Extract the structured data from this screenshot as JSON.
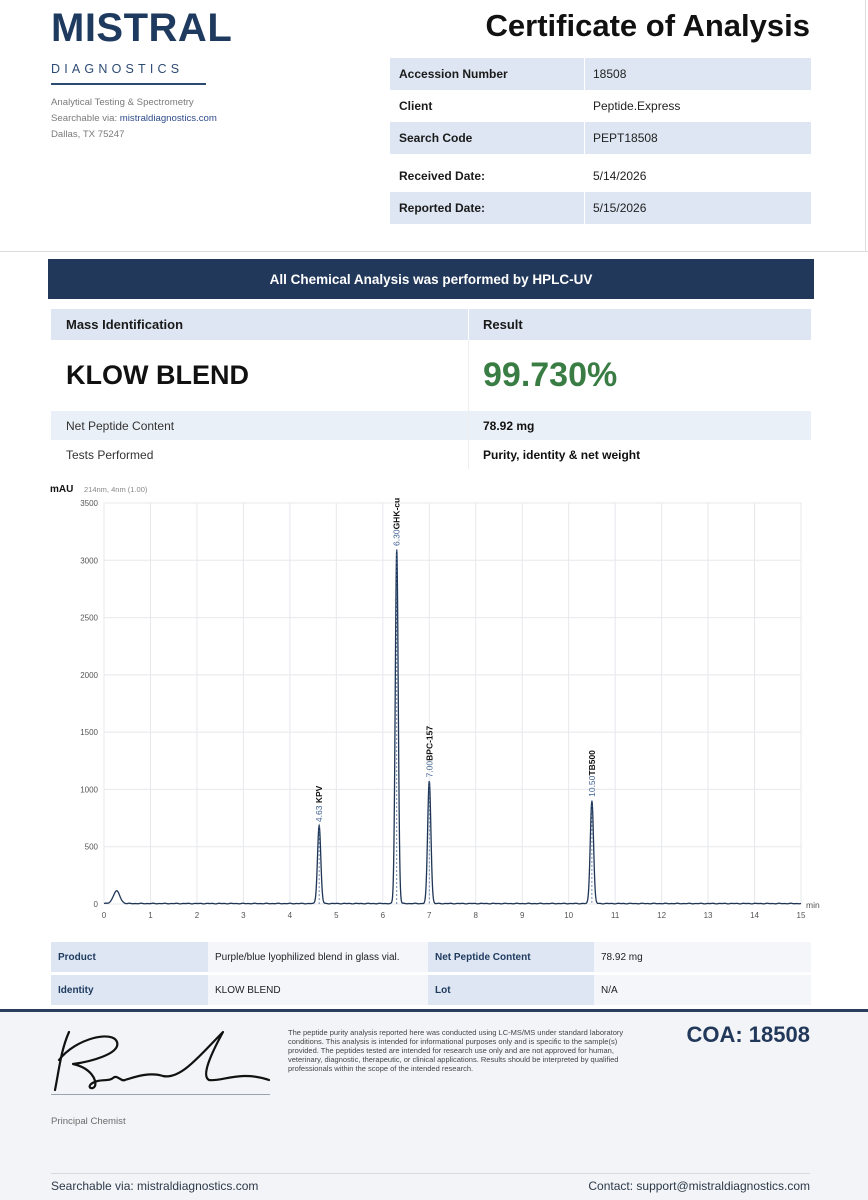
{
  "brand": {
    "name": "MISTRAL",
    "subtitle": "DIAGNOSTICS",
    "tagline": "Analytical Testing & Spectrometry",
    "search_prefix": "Searchable via: ",
    "search_link": "mistraldiagnostics.com",
    "address": "Dallas, TX 75247"
  },
  "document": {
    "title": "Certificate of Analysis"
  },
  "info": [
    {
      "label": "Accession Number",
      "value": "18508"
    },
    {
      "label": "Client",
      "value": "Peptide.Express"
    },
    {
      "label": "Search Code",
      "value": "PEPT18508"
    },
    {
      "label": "Received Date:",
      "value": "5/14/2026"
    },
    {
      "label": "Reported Date:",
      "value": "5/15/2026"
    }
  ],
  "banner": "All Chemical Analysis was performed by HPLC-UV",
  "results": {
    "col_left": "Mass Identification",
    "col_right": "Result",
    "product_name": "KLOW BLEND",
    "purity": "99.730%",
    "net_label": "Net Peptide Content",
    "net_value": "78.92 mg",
    "tests_label": "Tests Performed",
    "tests_value": "Purity, identity & net weight"
  },
  "chart_data": {
    "type": "line",
    "ylabel": "mAU",
    "subtitle": "214nm, 4nm (1.00)",
    "xlabel": "min",
    "xlim": [
      0,
      15
    ],
    "ylim": [
      0,
      3500
    ],
    "x_ticks": [
      "0",
      "1",
      "2",
      "3",
      "4",
      "5",
      "6",
      "7",
      "8",
      "9",
      "10",
      "11",
      "12",
      "13",
      "14",
      "15"
    ],
    "y_ticks": [
      "0",
      "500",
      "1000",
      "1500",
      "2000",
      "2500",
      "3000",
      "3500"
    ],
    "grid": true,
    "peaks": [
      {
        "name": "",
        "time": 0.27,
        "height": 110,
        "width": 0.07,
        "label_time": ""
      },
      {
        "name": "KPV",
        "time": 4.63,
        "height": 680,
        "width": 0.035,
        "label_time": "4.63"
      },
      {
        "name": "GHK-cu",
        "time": 6.3,
        "height": 3090,
        "width": 0.032,
        "label_time": "6.30"
      },
      {
        "name": "BPC-157",
        "time": 7.0,
        "height": 1070,
        "width": 0.035,
        "label_time": "7.00"
      },
      {
        "name": "TB500",
        "time": 10.5,
        "height": 900,
        "width": 0.035,
        "label_time": "10.50"
      }
    ],
    "line_color": "#1e3555"
  },
  "details": {
    "product_label": "Product",
    "product_value": "Purple/blue lyophilized blend in glass vial.",
    "net_label": "Net Peptide Content",
    "net_value": "78.92 mg",
    "identity_label": "Identity",
    "identity_value": "KLOW BLEND",
    "lot_label": "Lot",
    "lot_value": "N/A"
  },
  "footer": {
    "disclaimer": "The peptide purity analysis reported here was conducted using LC-MS/MS under standard laboratory conditions. This analysis is intended for informational purposes only and is specific to the sample(s) provided. The peptides tested are intended for research use only and are not approved for human, veterinary, diagnostic, therapeutic, or clinical applications. Results should be interpreted by qualified professionals within the scope of the intended research.",
    "coa": "COA: 18508",
    "chemist": "Principal Chemist",
    "searchable": "Searchable via: mistraldiagnostics.com",
    "contact": "Contact: support@mistraldiagnostics.com"
  }
}
